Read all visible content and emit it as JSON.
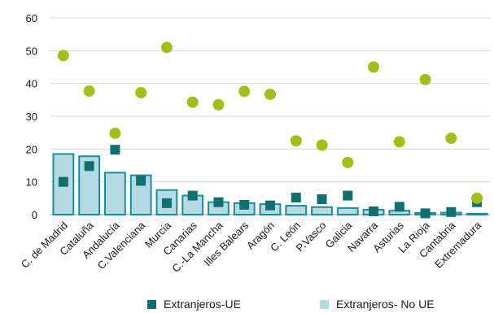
{
  "chart_data": {
    "type": "bar",
    "categories": [
      "C. de Madrid",
      "Cataluña",
      "Andalucía",
      "C.Valenciana",
      "Murcia",
      "Canarias",
      "C.-La Mancha",
      "Illes Balears",
      "Aragón",
      "C. León",
      "P.Vasco",
      "Galicia",
      "Navarra",
      "Asturias",
      "La Rioja",
      "Cantabria",
      "Extremadura"
    ],
    "ylim": [
      0,
      60
    ],
    "yticks": [
      0,
      10,
      20,
      30,
      40,
      50,
      60
    ],
    "grid": true,
    "legend_position": "bottom",
    "series": [
      {
        "name": "Extranjeros- No UE",
        "type": "bar",
        "color": "#b5dbe2",
        "edge_color": "#1e8d98",
        "values": [
          18.5,
          17.8,
          12.8,
          12.0,
          7.5,
          5.8,
          3.8,
          3.5,
          3.2,
          2.7,
          2.3,
          2.0,
          1.5,
          1.2,
          0.5,
          0.6,
          0.3
        ]
      },
      {
        "name": "Extranjeros-UE",
        "type": "scatter",
        "marker": "square",
        "color": "#136e6f",
        "values": [
          10.0,
          14.8,
          19.8,
          10.3,
          3.5,
          5.8,
          3.8,
          3.0,
          2.8,
          5.2,
          4.7,
          5.8,
          1.0,
          2.4,
          0.4,
          0.8,
          3.8
        ]
      },
      {
        "type": "scatter",
        "marker": "circle",
        "color": "#a5bf1a",
        "values": [
          48.5,
          37.7,
          24.8,
          37.2,
          51.0,
          34.3,
          33.5,
          37.6,
          36.7,
          22.5,
          21.2,
          15.9,
          45.0,
          22.2,
          41.2,
          23.3,
          5.0
        ]
      }
    ]
  }
}
